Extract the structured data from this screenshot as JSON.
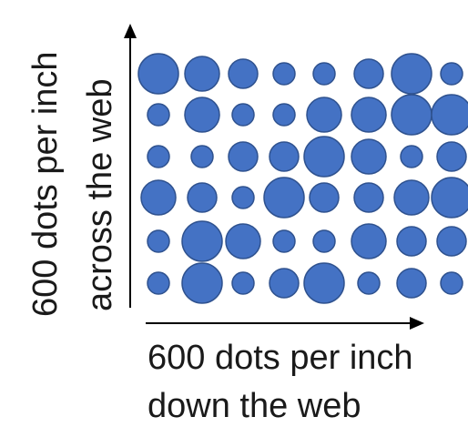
{
  "vertical_label": {
    "line1": "600 dots per inch",
    "line2": "across the web"
  },
  "horizontal_label": {
    "line1": "600 dots per inch",
    "line2": "down the web"
  },
  "colors": {
    "dot_fill": "#4472c4",
    "dot_stroke": "#2f528f",
    "axis": "#000000",
    "text": "#1a1a1a"
  }
}
